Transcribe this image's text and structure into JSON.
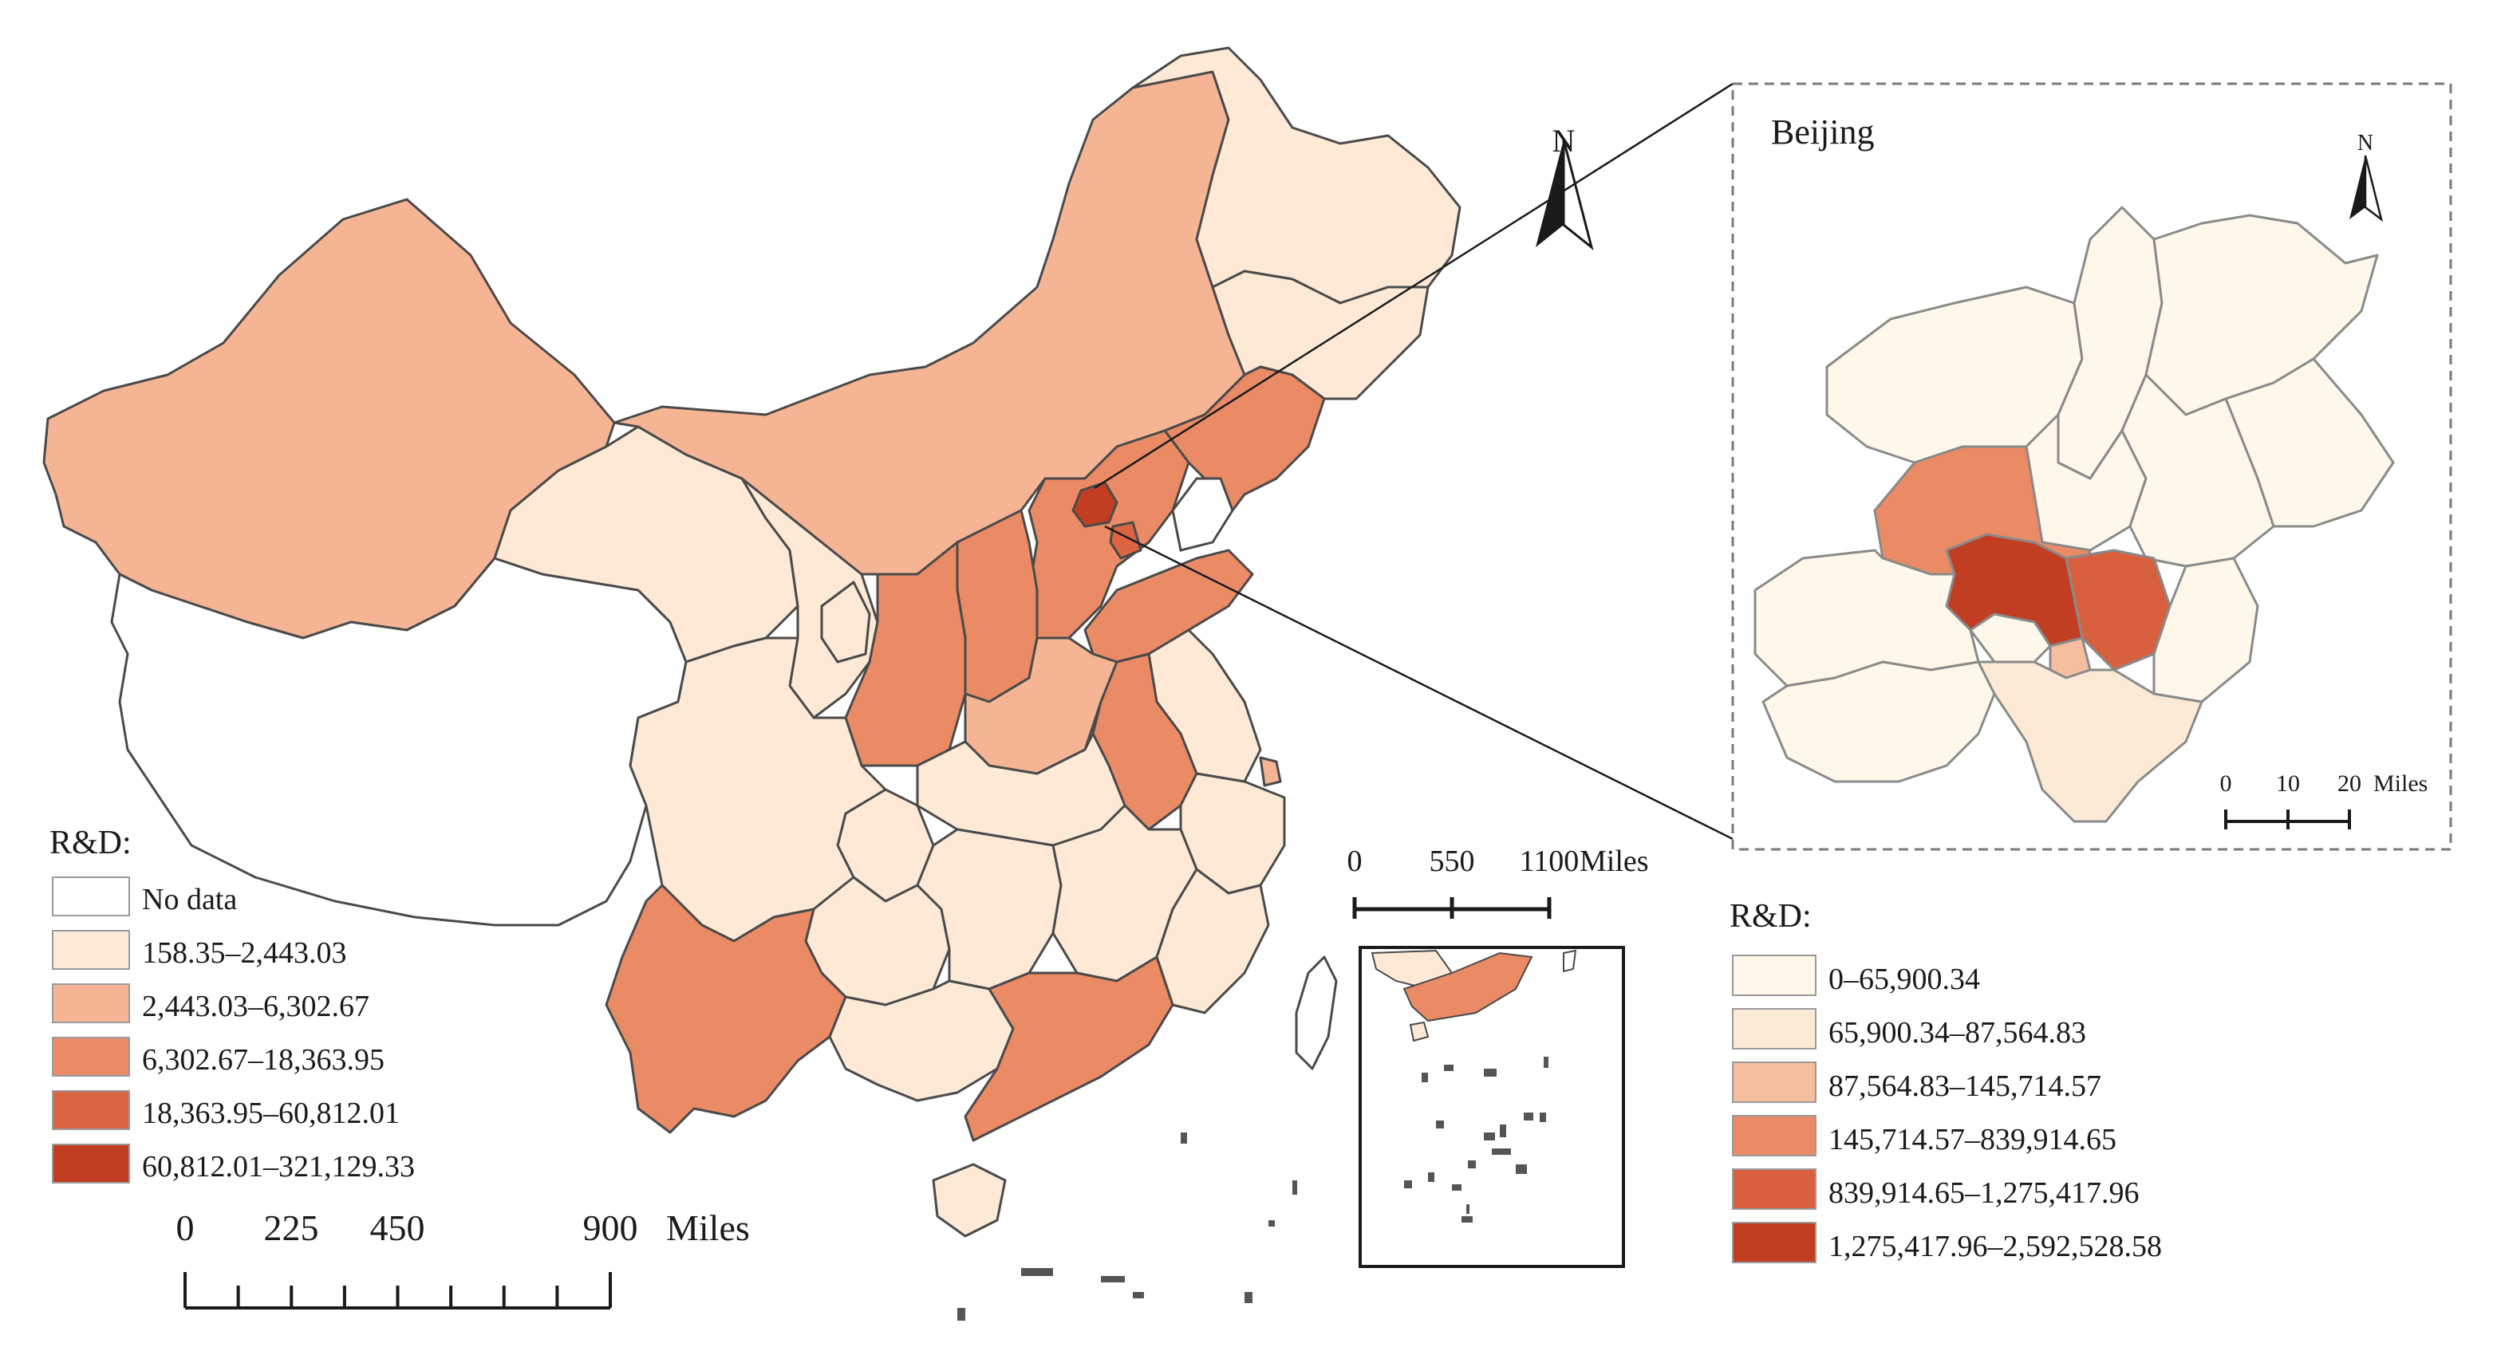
{
  "colors": {
    "main": [
      "#ffffff",
      "#fde9d6",
      "#f5b595",
      "#ea8b66",
      "#db6443",
      "#c13e23"
    ],
    "inset": [
      "#fef7ea",
      "#fcead6",
      "#f5be9f",
      "#ea8b66",
      "#d9603f",
      "#c13e23"
    ],
    "border": "#4a4a4a"
  },
  "main_map": {
    "north_label": "N",
    "legend": {
      "title": "R&D:",
      "classes": [
        {
          "label": "No data",
          "color": "#ffffff"
        },
        {
          "label": "158.35–2,443.03",
          "color": "#fde9d6"
        },
        {
          "label": "2,443.03–6,302.67",
          "color": "#f5b595"
        },
        {
          "label": "6,302.67–18,363.95",
          "color": "#ea8b66"
        },
        {
          "label": "18,363.95–60,812.01",
          "color": "#db6443"
        },
        {
          "label": "60,812.01–321,129.33",
          "color": "#c13e23"
        }
      ]
    },
    "scale_bar": {
      "ticks": [
        "0",
        "225",
        "450",
        "900"
      ],
      "unit": "Miles"
    },
    "sea_inset_scale": {
      "ticks": [
        "0",
        "550",
        "1100"
      ],
      "unit": "Miles"
    }
  },
  "inset_map": {
    "title": "Beijing",
    "north_label": "N",
    "legend": {
      "title": "R&D:",
      "classes": [
        {
          "label": "0–65,900.34",
          "color": "#fef7ea"
        },
        {
          "label": "65,900.34–87,564.83",
          "color": "#fcead6"
        },
        {
          "label": "87,564.83–145,714.57",
          "color": "#f5be9f"
        },
        {
          "label": "145,714.57–839,914.65",
          "color": "#ea8b66"
        },
        {
          "label": "839,914.65–1,275,417.96",
          "color": "#d9603f"
        },
        {
          "label": "1,275,417.96–2,592,528.58",
          "color": "#c13e23"
        }
      ]
    },
    "scale_bar": {
      "ticks": [
        "0",
        "10",
        "20"
      ],
      "unit": "Miles"
    }
  }
}
